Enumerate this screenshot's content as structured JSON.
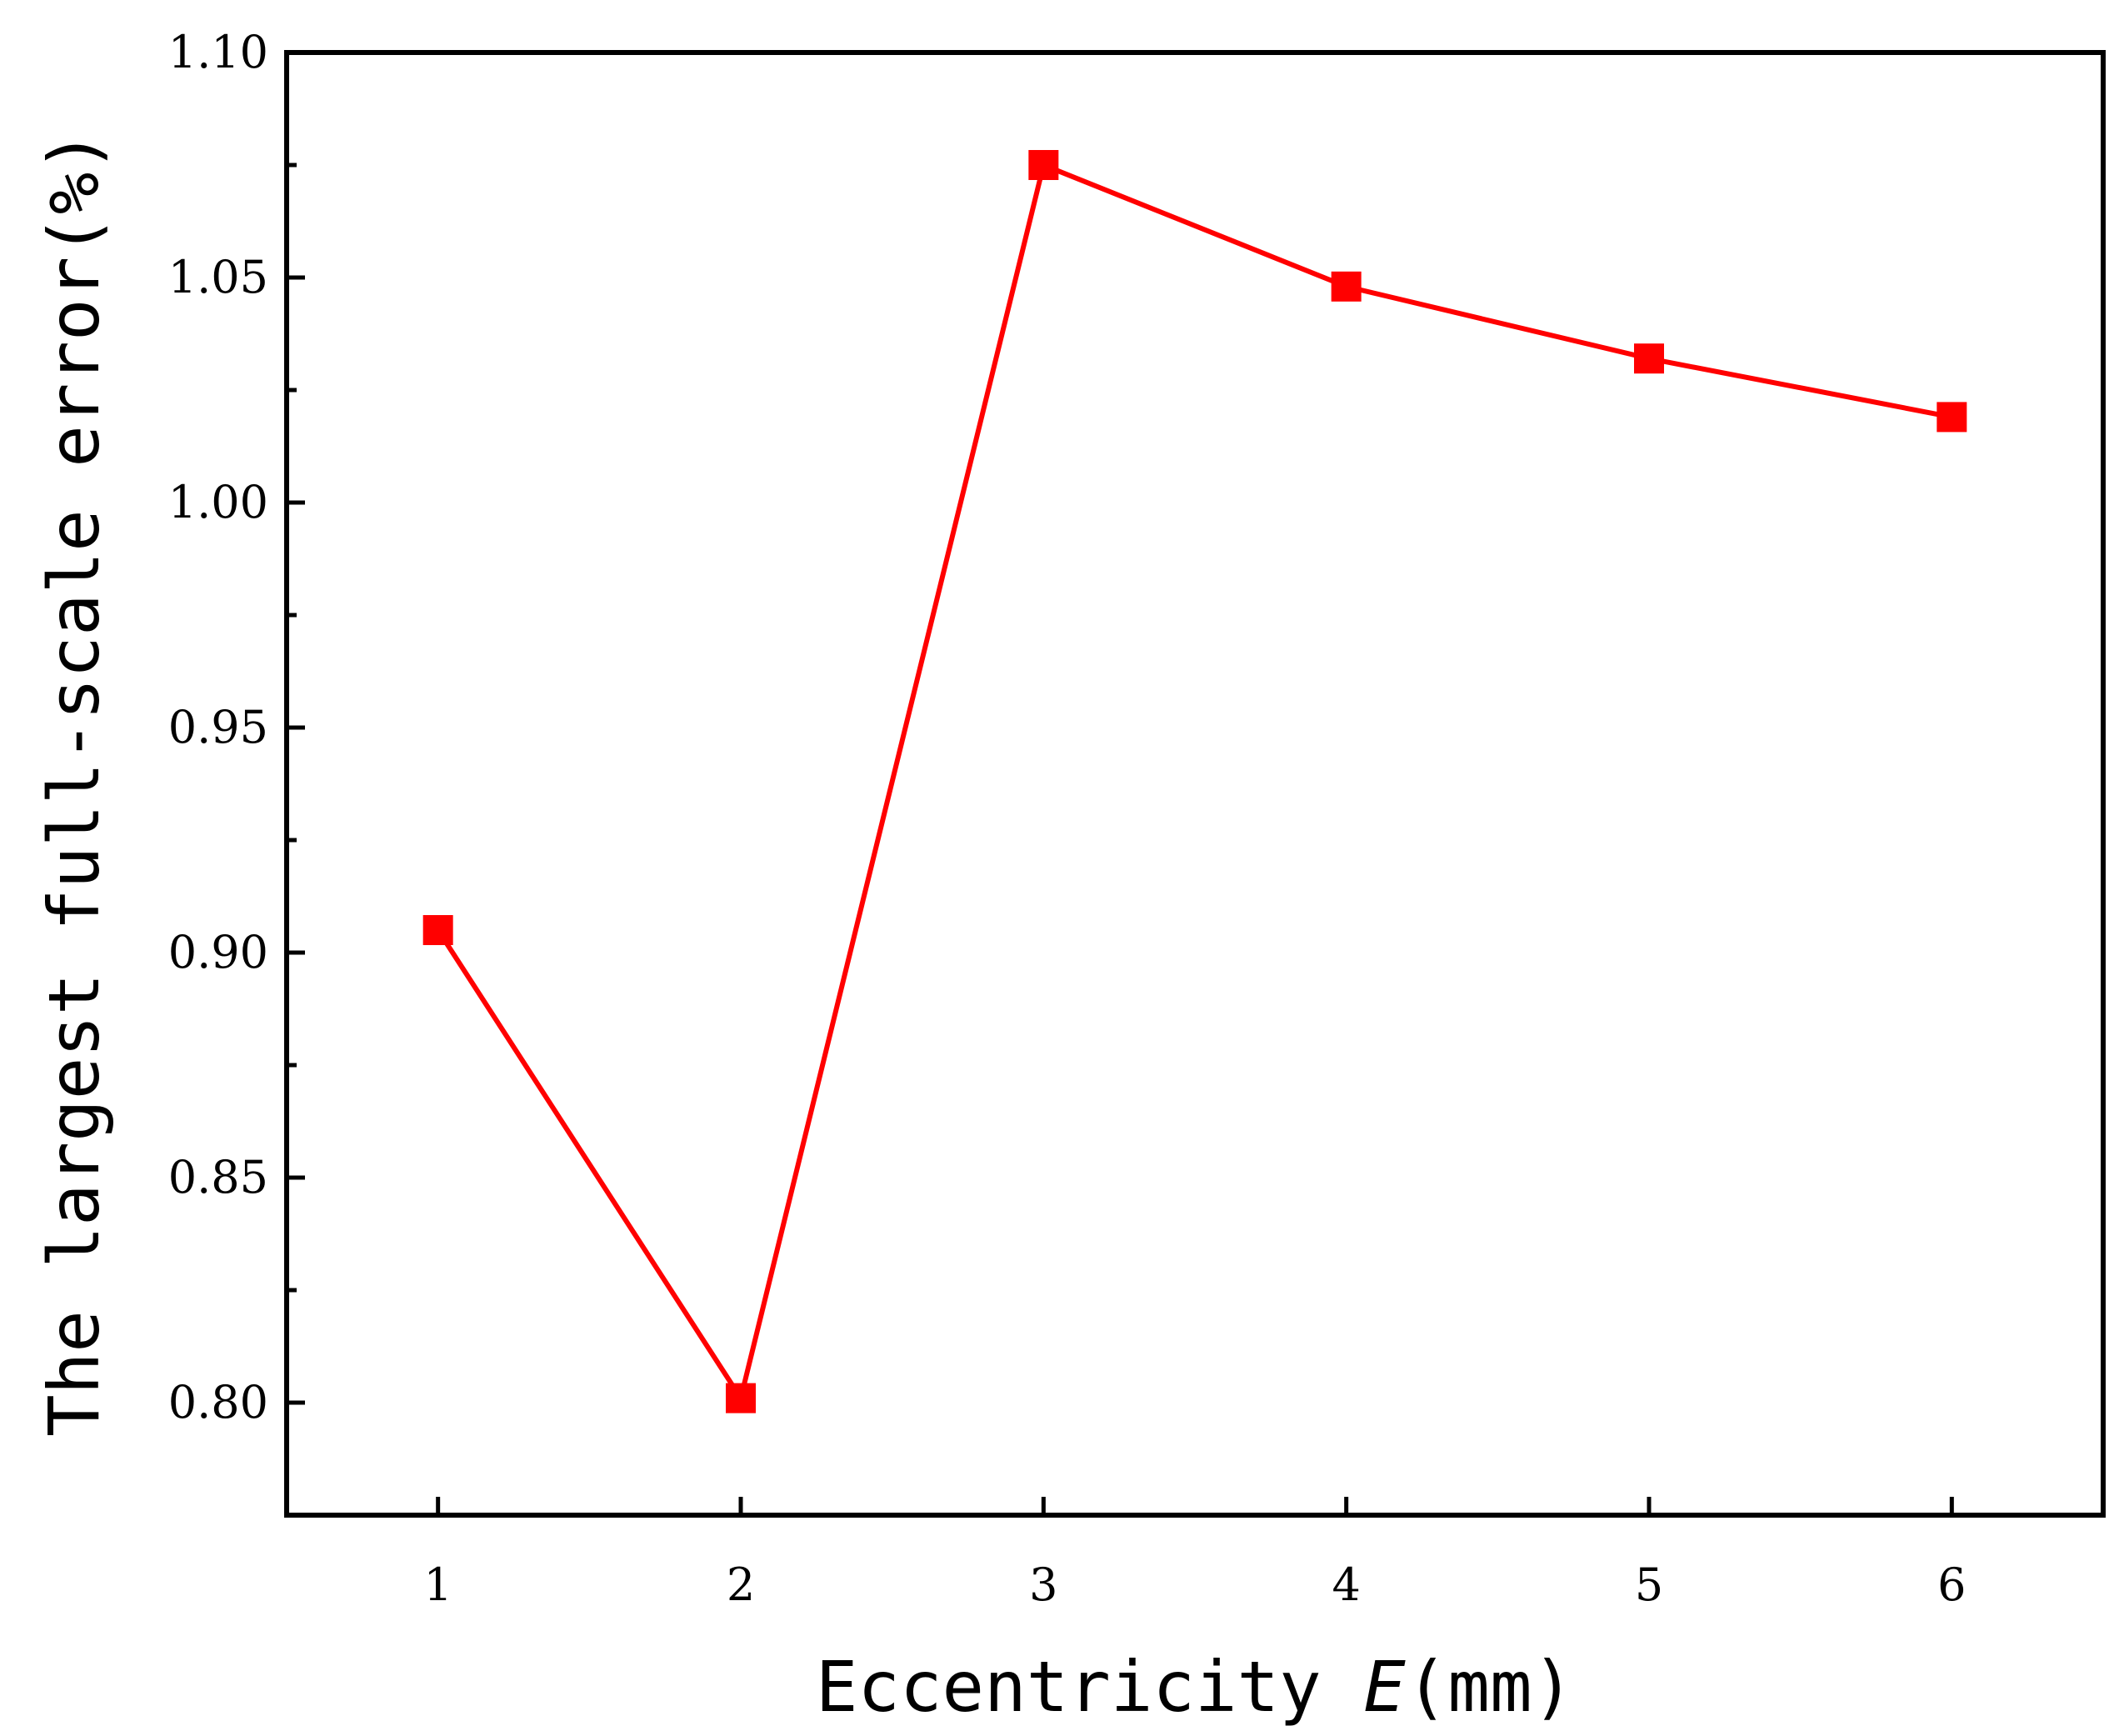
{
  "chart_data": {
    "type": "line",
    "xlabel": "Eccentricity ",
    "xlabel_var": "E",
    "xlabel_unit": "(mm)",
    "ylabel": "The largest full-scale error(%)",
    "x": [
      1,
      2,
      3,
      4,
      5,
      6
    ],
    "series": [
      {
        "values": [
          0.905,
          0.801,
          1.075,
          1.048,
          1.032,
          1.019
        ],
        "color": "#ff0000",
        "marker": "square"
      }
    ],
    "xlim": [
      0.5,
      6.5
    ],
    "ylim": [
      0.775,
      1.1
    ],
    "xticks": [
      "1",
      "2",
      "3",
      "4",
      "5",
      "6"
    ],
    "yticks": [
      "0.80",
      "0.85",
      "0.90",
      "0.95",
      "1.00",
      "1.05",
      "1.10"
    ],
    "grid": false,
    "legend": "none"
  }
}
